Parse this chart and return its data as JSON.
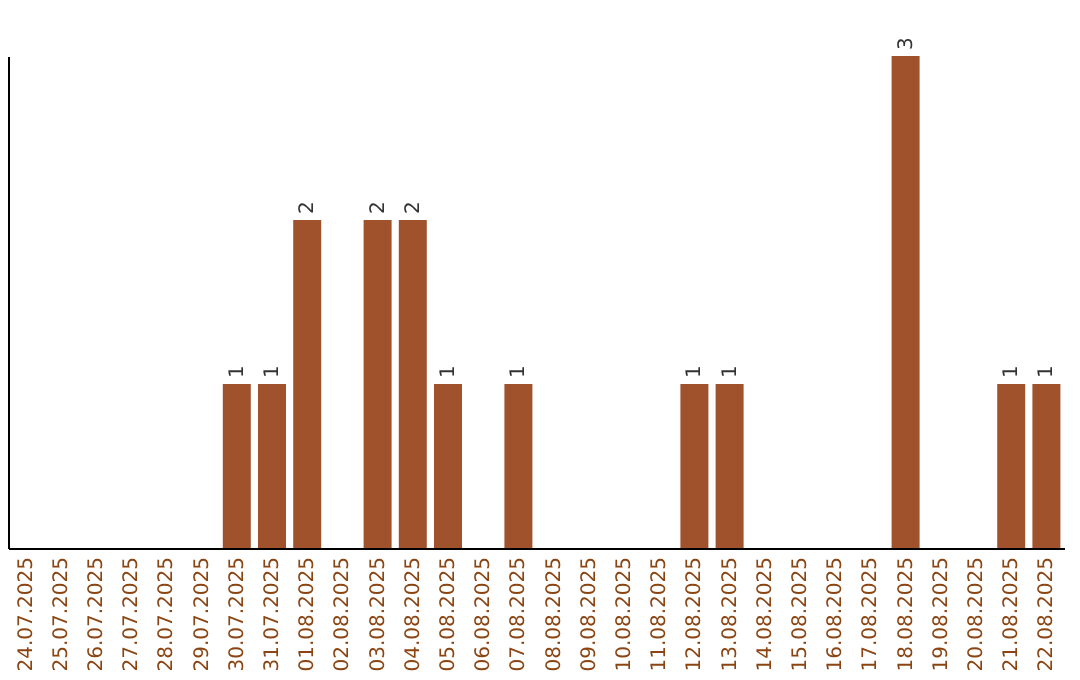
{
  "chart_data": {
    "type": "bar",
    "categories": [
      "24.07.2025",
      "25.07.2025",
      "26.07.2025",
      "27.07.2025",
      "28.07.2025",
      "29.07.2025",
      "30.07.2025",
      "31.07.2025",
      "01.08.2025",
      "02.08.2025",
      "03.08.2025",
      "04.08.2025",
      "05.08.2025",
      "06.08.2025",
      "07.08.2025",
      "08.08.2025",
      "09.08.2025",
      "10.08.2025",
      "11.08.2025",
      "12.08.2025",
      "13.08.2025",
      "14.08.2025",
      "15.08.2025",
      "16.08.2025",
      "17.08.2025",
      "18.08.2025",
      "19.08.2025",
      "20.08.2025",
      "21.08.2025",
      "22.08.2025"
    ],
    "values": [
      0,
      0,
      0,
      0,
      0,
      0,
      1,
      1,
      2,
      0,
      2,
      2,
      1,
      0,
      1,
      0,
      0,
      0,
      0,
      1,
      1,
      0,
      0,
      0,
      0,
      3,
      0,
      0,
      1,
      1
    ],
    "value_labels": [
      null,
      null,
      null,
      null,
      null,
      null,
      "1",
      "1",
      "2",
      null,
      "2",
      "2",
      "1",
      null,
      "1",
      null,
      null,
      null,
      null,
      "1",
      "1",
      null,
      null,
      null,
      null,
      "3",
      null,
      null,
      "1",
      "1"
    ],
    "color": "#a0522d",
    "tick_labels": "x",
    "grid": false
  }
}
